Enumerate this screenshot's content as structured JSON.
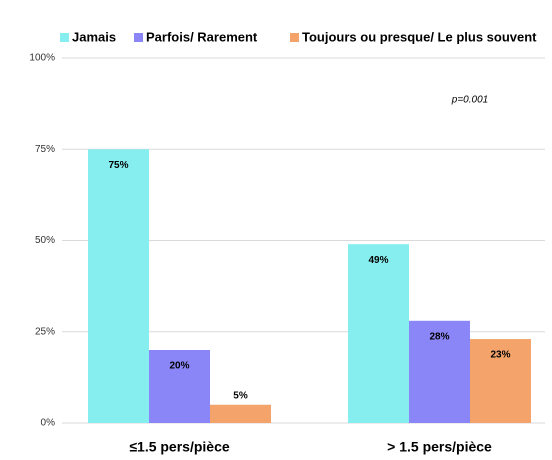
{
  "chart_data": {
    "type": "bar",
    "categories": [
      "≤1.5 pers/pièce",
      "> 1.5 pers/pièce"
    ],
    "series": [
      {
        "name": "Jamais",
        "color": "#87eef0",
        "values": [
          75,
          49
        ],
        "value_labels": [
          "75%",
          "49%"
        ]
      },
      {
        "name": "Parfois/ Rarement",
        "color": "#8b86f7",
        "values": [
          20,
          28
        ],
        "value_labels": [
          "20%",
          "28%"
        ]
      },
      {
        "name": "Toujours ou presque/ Le plus souvent",
        "color": "#f4a46b",
        "values": [
          5,
          23
        ],
        "value_labels": [
          "5%",
          "23%"
        ]
      }
    ],
    "ylim": [
      0,
      100
    ],
    "yticks": [
      {
        "value": 0,
        "label": "0%"
      },
      {
        "value": 25,
        "label": "25%"
      },
      {
        "value": 50,
        "label": "50%"
      },
      {
        "value": 75,
        "label": "75%"
      },
      {
        "value": 100,
        "label": "100%"
      }
    ],
    "grid": true,
    "legend": "top",
    "annotations": [
      "p=0.001"
    ]
  }
}
